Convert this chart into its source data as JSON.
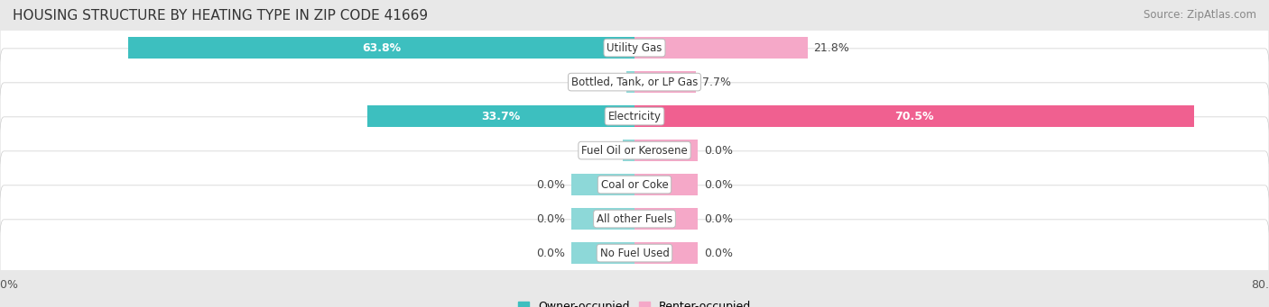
{
  "title": "HOUSING STRUCTURE BY HEATING TYPE IN ZIP CODE 41669",
  "source": "Source: ZipAtlas.com",
  "categories": [
    "Utility Gas",
    "Bottled, Tank, or LP Gas",
    "Electricity",
    "Fuel Oil or Kerosene",
    "Coal or Coke",
    "All other Fuels",
    "No Fuel Used"
  ],
  "owner_values": [
    63.8,
    1.0,
    33.7,
    1.5,
    0.0,
    0.0,
    0.0
  ],
  "renter_values": [
    21.8,
    7.7,
    70.5,
    0.0,
    0.0,
    0.0,
    0.0
  ],
  "owner_color": "#3dbfbf",
  "owner_color_light": "#8dd8d8",
  "renter_color": "#f06090",
  "renter_color_light": "#f5a8c8",
  "axis_max": 80.0,
  "zero_bar_width": 8.0,
  "bg_color": "#e8e8e8",
  "row_bg_color": "#f2f2f2",
  "bar_height": 0.62,
  "label_fontsize": 9,
  "title_fontsize": 11,
  "source_fontsize": 8.5,
  "legend_fontsize": 9
}
